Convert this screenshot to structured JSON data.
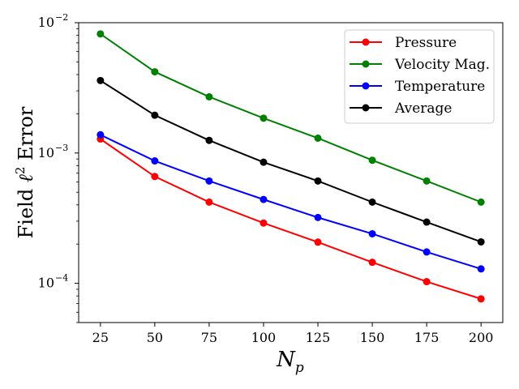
{
  "chart_data": {
    "type": "line",
    "title": "",
    "xlabel_base": "N",
    "xlabel_sub": "p",
    "ylabel_prefix": "Field ",
    "ylabel_symbol": "ℓ",
    "ylabel_sup": "2",
    "ylabel_suffix": " Error",
    "x": [
      25,
      50,
      75,
      100,
      125,
      150,
      175,
      200
    ],
    "xlim": [
      15,
      210
    ],
    "ylim": [
      5e-05,
      0.01
    ],
    "yscale": "log",
    "x_ticks": [
      {
        "value": 25,
        "label": "25"
      },
      {
        "value": 50,
        "label": "50"
      },
      {
        "value": 75,
        "label": "75"
      },
      {
        "value": 100,
        "label": "100"
      },
      {
        "value": 125,
        "label": "125"
      },
      {
        "value": 150,
        "label": "150"
      },
      {
        "value": 175,
        "label": "175"
      },
      {
        "value": 200,
        "label": "200"
      }
    ],
    "y_major_ticks": [
      {
        "value": 0.0001,
        "base": "10",
        "exp": "−4"
      },
      {
        "value": 0.001,
        "base": "10",
        "exp": "−3"
      },
      {
        "value": 0.01,
        "base": "10",
        "exp": "−2"
      }
    ],
    "grid": false,
    "legend_position": "top-right",
    "series": [
      {
        "name": "Pressure",
        "color": "#ff0000",
        "values": [
          0.00128,
          0.00066,
          0.00042,
          0.00029,
          0.000207,
          0.000145,
          0.000103,
          7.6e-05
        ]
      },
      {
        "name": "Velocity Mag.",
        "color": "#008000",
        "values": [
          0.0082,
          0.0042,
          0.0027,
          0.00185,
          0.0013,
          0.00088,
          0.00061,
          0.00042
        ]
      },
      {
        "name": "Temperature",
        "color": "#0000ff",
        "values": [
          0.00138,
          0.00087,
          0.00061,
          0.00044,
          0.00032,
          0.00024,
          0.000174,
          0.000129
        ]
      },
      {
        "name": "Average",
        "color": "#000000",
        "values": [
          0.0036,
          0.00195,
          0.00125,
          0.00085,
          0.00061,
          0.00042,
          0.000295,
          0.000208
        ]
      }
    ]
  }
}
